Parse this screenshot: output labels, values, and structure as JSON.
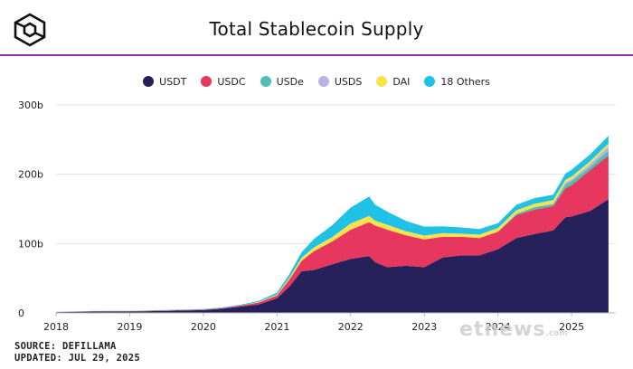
{
  "title": "Total Stablecoin Supply",
  "source_line": "SOURCE: DEFILLAMA",
  "updated_line": "UPDATED: JUL 29, 2025",
  "watermark": "etnews",
  "watermark_suffix": ".com",
  "colors": {
    "accent_rule": "#8e2fa8",
    "logo": "#111111",
    "gridline": "#e3e3e3",
    "axis": "#bbbbbb"
  },
  "legend": [
    {
      "name": "USDT",
      "color": "#27215b"
    },
    {
      "name": "USDC",
      "color": "#e8375f"
    },
    {
      "name": "USDe",
      "color": "#4cc0b0"
    },
    {
      "name": "USDS",
      "color": "#b9b3e6"
    },
    {
      "name": "DAI",
      "color": "#f9e24a"
    },
    {
      "name": "18 Others",
      "color": "#1fc2e6"
    }
  ],
  "chart_data": {
    "type": "area",
    "stacked": true,
    "title": "Total Stablecoin Supply",
    "xlabel": "",
    "ylabel": "",
    "x_ticks": [
      "2018",
      "2019",
      "2020",
      "2021",
      "2022",
      "2023",
      "2024",
      "2025"
    ],
    "y_ticks": [
      "0",
      "100b",
      "200b",
      "300b"
    ],
    "ylim": [
      0,
      300
    ],
    "unit": "b",
    "grid": true,
    "legend_position": "top",
    "x": [
      "2018-01",
      "2018-07",
      "2019-01",
      "2019-07",
      "2020-01",
      "2020-04",
      "2020-07",
      "2020-10",
      "2021-01",
      "2021-03",
      "2021-05",
      "2021-07",
      "2021-10",
      "2022-01",
      "2022-04",
      "2022-05",
      "2022-07",
      "2022-10",
      "2023-01",
      "2023-04",
      "2023-07",
      "2023-10",
      "2024-01",
      "2024-04",
      "2024-07",
      "2024-10",
      "2024-12",
      "2025-01",
      "2025-04",
      "2025-07"
    ],
    "series": [
      {
        "name": "USDT",
        "color": "#27215b",
        "values": [
          1,
          2,
          2,
          3,
          4,
          6,
          9,
          12,
          21,
          38,
          60,
          62,
          70,
          78,
          82,
          73,
          66,
          68,
          66,
          80,
          83,
          83,
          92,
          108,
          114,
          119,
          138,
          139,
          147,
          164
        ]
      },
      {
        "name": "USDC",
        "color": "#e8375f",
        "values": [
          0.3,
          0.4,
          0.5,
          0.6,
          0.7,
          0.8,
          1.5,
          3,
          4,
          10,
          15,
          27,
          33,
          42,
          49,
          53,
          54,
          44,
          40,
          30,
          27,
          25,
          25,
          33,
          35,
          35,
          42,
          45,
          59,
          63
        ]
      },
      {
        "name": "USDe",
        "color": "#4cc0b0",
        "values": [
          0,
          0,
          0,
          0,
          0,
          0,
          0,
          0,
          0,
          0,
          0,
          0,
          0,
          0,
          0,
          0,
          0,
          0,
          0,
          0,
          0,
          0,
          0.5,
          2,
          3.6,
          2.6,
          5.8,
          6,
          4.7,
          7.5
        ]
      },
      {
        "name": "USDS",
        "color": "#b9b3e6",
        "values": [
          0,
          0,
          0,
          0,
          0,
          0,
          0,
          0,
          0,
          0,
          0,
          0,
          0,
          0,
          0,
          0,
          0,
          0,
          0,
          0,
          0,
          0,
          0,
          0,
          0,
          1,
          2,
          2.5,
          4,
          6
        ]
      },
      {
        "name": "DAI",
        "color": "#f9e24a",
        "values": [
          0.05,
          0.05,
          0.1,
          0.1,
          0.15,
          0.2,
          0.3,
          0.8,
          1.3,
          2.5,
          4.5,
          5.5,
          6.5,
          9,
          9,
          7,
          7,
          5.8,
          5.5,
          5,
          4.3,
          5,
          5,
          5,
          5,
          5,
          4.2,
          4,
          3.8,
          4
        ]
      },
      {
        "name": "18 Others",
        "color": "#1fc2e6",
        "values": [
          0.2,
          0.3,
          0.4,
          0.5,
          0.6,
          0.8,
          1,
          1.5,
          3,
          5,
          8,
          12,
          17,
          23,
          28,
          23,
          19,
          15,
          13,
          10,
          9,
          8,
          7,
          8,
          8,
          8,
          9,
          10,
          10,
          11
        ]
      }
    ]
  }
}
